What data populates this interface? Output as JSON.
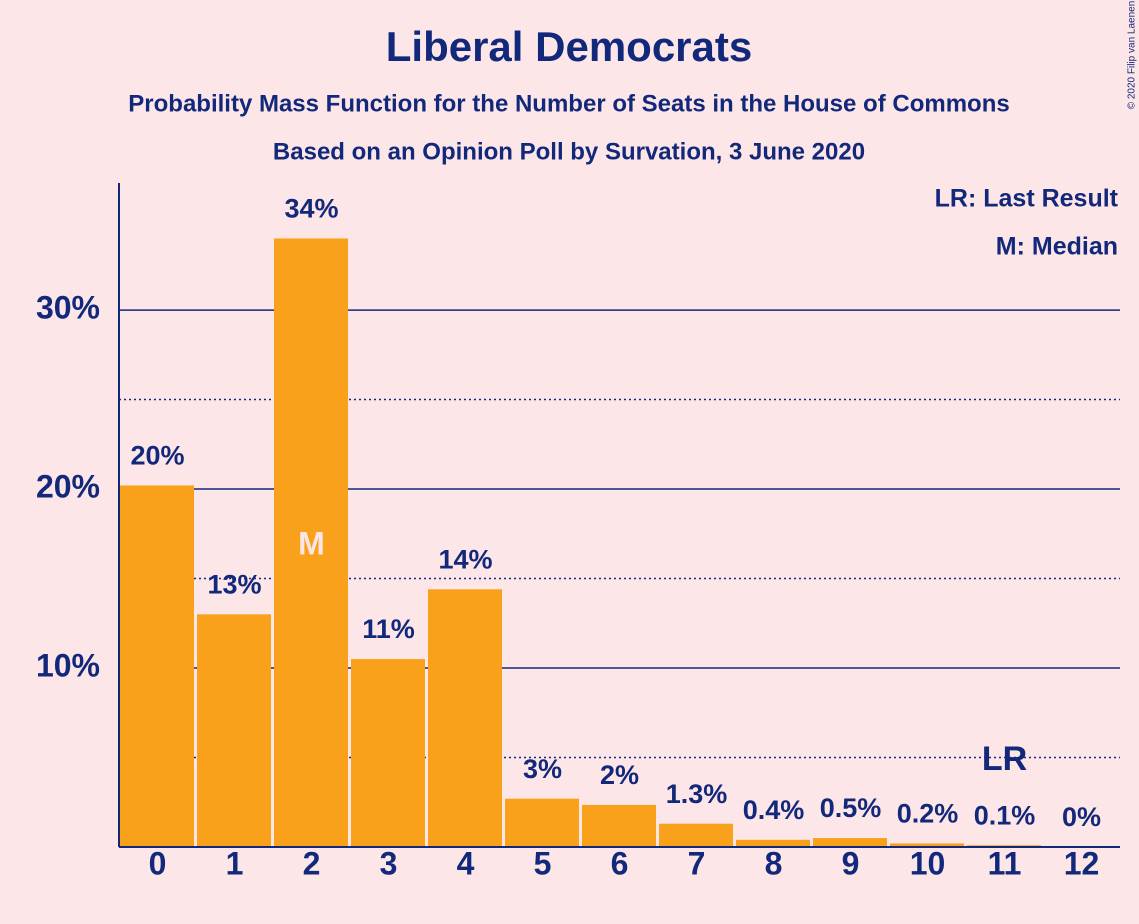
{
  "chart_data": {
    "type": "bar",
    "title": "Liberal Democrats",
    "subtitle": "Probability Mass Function for the Number of Seats in the House of Commons",
    "subtitle2": "Based on an Opinion Poll by Survation, 3 June 2020",
    "copyright": "© 2020 Filip van Laenen",
    "legend": [
      "LR: Last Result",
      "M: Median"
    ],
    "categories": [
      "0",
      "1",
      "2",
      "3",
      "4",
      "5",
      "6",
      "7",
      "8",
      "9",
      "10",
      "11",
      "12"
    ],
    "values": [
      20.2,
      13.0,
      34.0,
      10.5,
      14.4,
      2.7,
      2.35,
      1.3,
      0.4,
      0.5,
      0.2,
      0.1,
      0
    ],
    "value_labels": [
      "20%",
      "13%",
      "34%",
      "11%",
      "14%",
      "3%",
      "2%",
      "1.3%",
      "0.4%",
      "0.5%",
      "0.2%",
      "0.1%",
      "0%"
    ],
    "color": "#f9a11b",
    "ylim": [
      0,
      37.1
    ],
    "yticks": [
      {
        "value": 10,
        "label": "10%"
      },
      {
        "value": 20,
        "label": "20%"
      },
      {
        "value": 30,
        "label": "30%"
      }
    ],
    "minor_yticks": [
      5,
      15,
      25
    ],
    "grid": true,
    "median_index": 2,
    "median_marker": "M",
    "last_result_index": 11,
    "last_result_marker": "LR"
  }
}
